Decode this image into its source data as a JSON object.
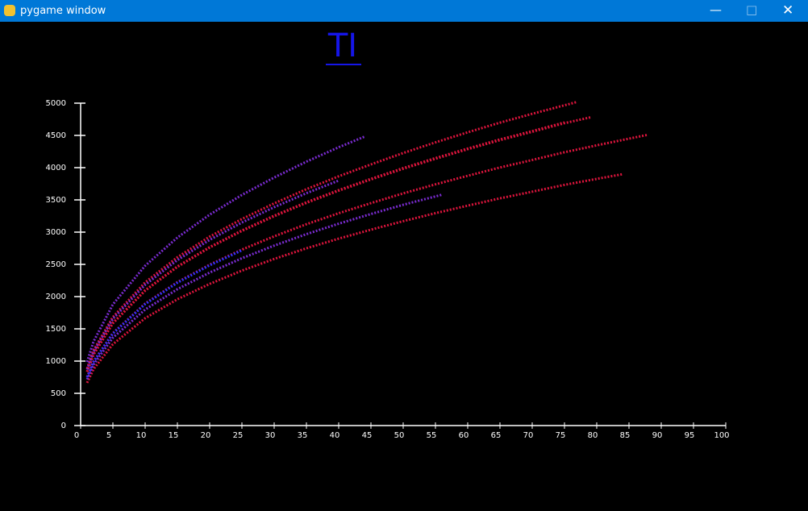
{
  "window": {
    "title": "pygame window"
  },
  "chart_data": {
    "type": "line",
    "title": "TI",
    "title_color": "#1515e8",
    "xlim": [
      0,
      100
    ],
    "ylim": [
      0,
      5000
    ],
    "xticks": [
      0,
      5,
      10,
      15,
      20,
      25,
      30,
      35,
      40,
      45,
      50,
      55,
      60,
      65,
      70,
      75,
      80,
      85,
      90,
      95,
      100
    ],
    "yticks": [
      0,
      500,
      1000,
      1500,
      2000,
      2500,
      3000,
      3500,
      4000,
      4500,
      5000
    ],
    "grid": false,
    "axis_color": "#ffffff",
    "series": [
      {
        "color": "#dc143c",
        "x": [
          1,
          2,
          5,
          10,
          15,
          20,
          25,
          30,
          35,
          40,
          45,
          50,
          55,
          60,
          65,
          70,
          77
        ],
        "values": [
          884,
          1167,
          1683,
          2221,
          2611,
          2930,
          3204,
          3446,
          3666,
          3866,
          4050,
          4227,
          4392,
          4548,
          4698,
          4835,
          5020
        ]
      },
      {
        "color": "#dc143c",
        "x": [
          1,
          2,
          5,
          10,
          15,
          20,
          25,
          30,
          35,
          40,
          45,
          50,
          55,
          60,
          65,
          70,
          75,
          79
        ],
        "values": [
          833,
          1100,
          1586,
          2092,
          2461,
          2761,
          3019,
          3247,
          3454,
          3643,
          3817,
          3983,
          4138,
          4286,
          4427,
          4557,
          4690,
          4780
        ]
      },
      {
        "color": "#dc143c",
        "x": [
          1,
          2,
          5,
          10,
          15,
          20,
          25,
          30,
          35,
          40,
          45,
          50,
          55,
          60,
          65,
          70,
          75
        ],
        "values": [
          835,
          1102,
          1590,
          2098,
          2467,
          2767,
          3026,
          3255,
          3463,
          3651,
          3826,
          3993,
          4148,
          4296,
          4438,
          4567,
          4701
        ]
      },
      {
        "color": "#dc143c",
        "x": [
          1,
          2,
          5,
          10,
          15,
          20,
          25,
          30,
          35,
          40,
          45,
          50,
          55,
          60,
          65,
          70,
          75,
          80,
          85,
          88
        ],
        "values": [
          753,
          994,
          1434,
          1892,
          2224,
          2495,
          2729,
          2935,
          3123,
          3293,
          3450,
          3601,
          3741,
          3874,
          4002,
          4119,
          4239,
          4346,
          4450,
          4511
        ]
      },
      {
        "color": "#dc143c",
        "x": [
          1,
          2,
          5,
          10,
          15,
          20,
          25,
          30,
          35,
          40,
          45,
          50,
          55,
          60,
          65,
          70,
          75,
          80,
          84
        ],
        "values": [
          663,
          875,
          1262,
          1665,
          1959,
          2197,
          2403,
          2584,
          2749,
          2899,
          3038,
          3170,
          3294,
          3411,
          3524,
          3627,
          3733,
          3826,
          3898
        ]
      },
      {
        "color": "#7a2bd0",
        "x": [
          1,
          2,
          5,
          10,
          15,
          20,
          25,
          30,
          35,
          40,
          44
        ],
        "values": [
          987,
          1303,
          1879,
          2479,
          2916,
          3271,
          3577,
          3847,
          4093,
          4316,
          4481
        ]
      },
      {
        "color": "#7a2bd0",
        "x": [
          1,
          2,
          5,
          10,
          15,
          20,
          25,
          30,
          35,
          40,
          45,
          50,
          56
        ],
        "values": [
          716,
          945,
          1363,
          1799,
          2115,
          2373,
          2595,
          2791,
          2969,
          3131,
          3281,
          3424,
          3580
        ]
      },
      {
        "color": "#3030ff",
        "x": [
          1,
          2,
          5,
          10,
          15,
          20,
          25
        ],
        "values": [
          750,
          990,
          1428,
          1884,
          2216,
          2486,
          2718
        ]
      },
      {
        "color": "#7a2bd0",
        "x": [
          1,
          2,
          5,
          10,
          15,
          20,
          25,
          30,
          35,
          40
        ],
        "values": [
          869,
          1147,
          1655,
          2183,
          2567,
          2880,
          3149,
          3387,
          3604,
          3800
        ]
      }
    ]
  }
}
